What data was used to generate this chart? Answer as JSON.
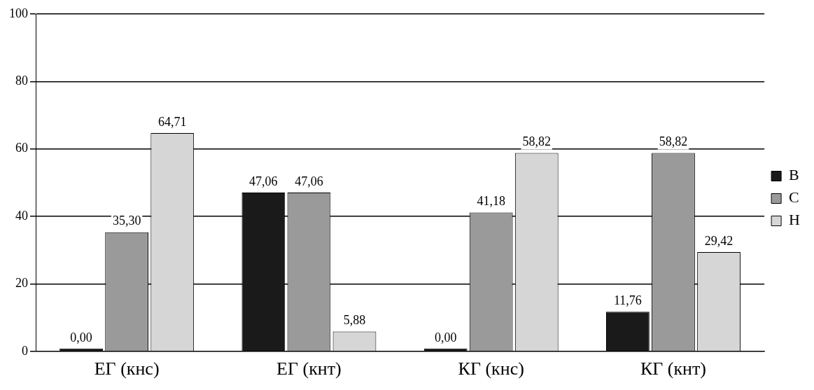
{
  "chart_data": {
    "type": "bar",
    "categories": [
      "ЕГ (кнс)",
      "ЕГ (кнт)",
      "КГ (кнс)",
      "КГ (кнт)"
    ],
    "series": [
      {
        "name": "В",
        "color": "#1a1a1a",
        "values": [
          0.0,
          47.06,
          0.0,
          11.76
        ],
        "value_labels": [
          "0,00",
          "47,06",
          "0,00",
          "11,76"
        ]
      },
      {
        "name": "С",
        "color": "#9a9a9a",
        "values": [
          35.3,
          47.06,
          41.18,
          58.82
        ],
        "value_labels": [
          "35,30",
          "47,06",
          "41,18",
          "58,82"
        ]
      },
      {
        "name": "Н",
        "color": "#d6d6d6",
        "values": [
          64.71,
          5.88,
          58.82,
          29.42
        ],
        "value_labels": [
          "64,71",
          "5,88",
          "58,82",
          "29,42"
        ]
      }
    ],
    "ylim": [
      0,
      100
    ],
    "yticks": [
      0,
      20,
      40,
      60,
      80,
      100
    ],
    "grid": "y",
    "legend": "right"
  }
}
